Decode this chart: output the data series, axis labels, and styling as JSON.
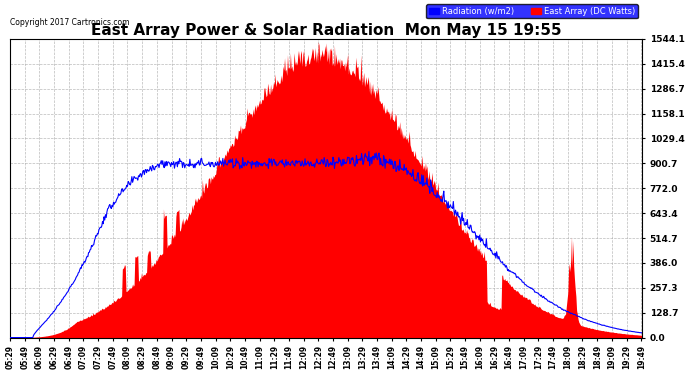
{
  "title": "East Array Power & Solar Radiation  Mon May 15 19:55",
  "copyright": "Copyright 2017 Cartronics.com",
  "legend_labels": [
    "Radiation (w/m2)",
    "East Array (DC Watts)"
  ],
  "ymin": 0.0,
  "ymax": 1544.1,
  "yticks": [
    0.0,
    128.7,
    257.3,
    386.0,
    514.7,
    643.4,
    772.0,
    900.7,
    1029.4,
    1158.1,
    1286.7,
    1415.4,
    1544.1
  ],
  "background_color": "#ffffff",
  "grid_color": "#aaaaaa",
  "title_fontsize": 11
}
